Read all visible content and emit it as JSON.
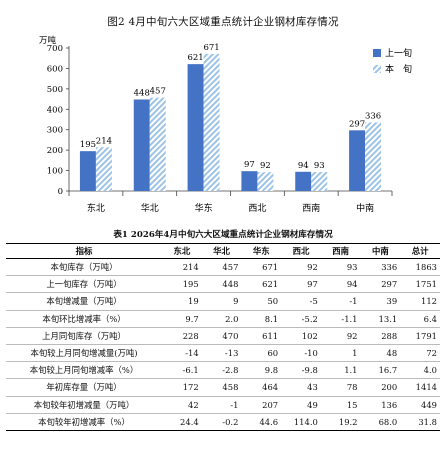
{
  "figure": {
    "title": "图2   4月中旬六大区域重点统计企业钢材库存情况",
    "unit_label": "万吨"
  },
  "chart_data": {
    "type": "bar",
    "categories": [
      "东北",
      "华北",
      "华东",
      "西北",
      "西南",
      "中南"
    ],
    "series": [
      {
        "name": "上一旬",
        "values": [
          195,
          448,
          621,
          97,
          94,
          297
        ],
        "color": "#4472c4",
        "pattern": "solid"
      },
      {
        "name": "本　旬",
        "values": [
          214,
          457,
          671,
          92,
          93,
          336
        ],
        "color": "#9dc3e6",
        "pattern": "diagonal-hatch"
      }
    ],
    "ylim": [
      0,
      700
    ],
    "yticks": [
      0,
      100,
      200,
      300,
      400,
      500,
      600,
      700
    ],
    "ylabel": "万吨",
    "legend": "right",
    "grid": false
  },
  "table": {
    "title": "表1   2026年4月中旬六大区域重点统计企业钢材库存情况",
    "headers": [
      "指标",
      "东北",
      "华北",
      "华东",
      "西北",
      "西南",
      "中南",
      "总计"
    ],
    "rows": [
      {
        "label": "本旬库存（万吨）",
        "values": [
          "214",
          "457",
          "671",
          "92",
          "93",
          "336",
          "1863"
        ]
      },
      {
        "label": "上一旬库存（万吨）",
        "values": [
          "195",
          "448",
          "621",
          "97",
          "94",
          "297",
          "1751"
        ]
      },
      {
        "label": "本旬增减量（万吨）",
        "values": [
          "19",
          "9",
          "50",
          "-5",
          "-1",
          "39",
          "112"
        ]
      },
      {
        "label": "本旬环比增减率（%）",
        "values": [
          "9.7",
          "2.0",
          "8.1",
          "-5.2",
          "-1.1",
          "13.1",
          "6.4"
        ]
      },
      {
        "label": "上月同旬库存（万吨）",
        "values": [
          "228",
          "470",
          "611",
          "102",
          "92",
          "288",
          "1791"
        ]
      },
      {
        "label": "本旬较上月同旬增减量(万吨)",
        "values": [
          "-14",
          "-13",
          "60",
          "-10",
          "1",
          "48",
          "72"
        ]
      },
      {
        "label": "本旬较上月同旬增减率（%）",
        "values": [
          "-6.1",
          "-2.8",
          "9.8",
          "-9.8",
          "1.1",
          "16.7",
          "4.0"
        ]
      },
      {
        "label": "年初库存量（万吨）",
        "values": [
          "172",
          "458",
          "464",
          "43",
          "78",
          "200",
          "1414"
        ]
      },
      {
        "label": "本旬较年初增减量（万吨）",
        "values": [
          "42",
          "-1",
          "207",
          "49",
          "15",
          "136",
          "449"
        ]
      },
      {
        "label": "本旬较年初增减率（%）",
        "values": [
          "24.4",
          "-0.2",
          "44.6",
          "114.0",
          "19.2",
          "68.0",
          "31.8"
        ]
      }
    ]
  }
}
